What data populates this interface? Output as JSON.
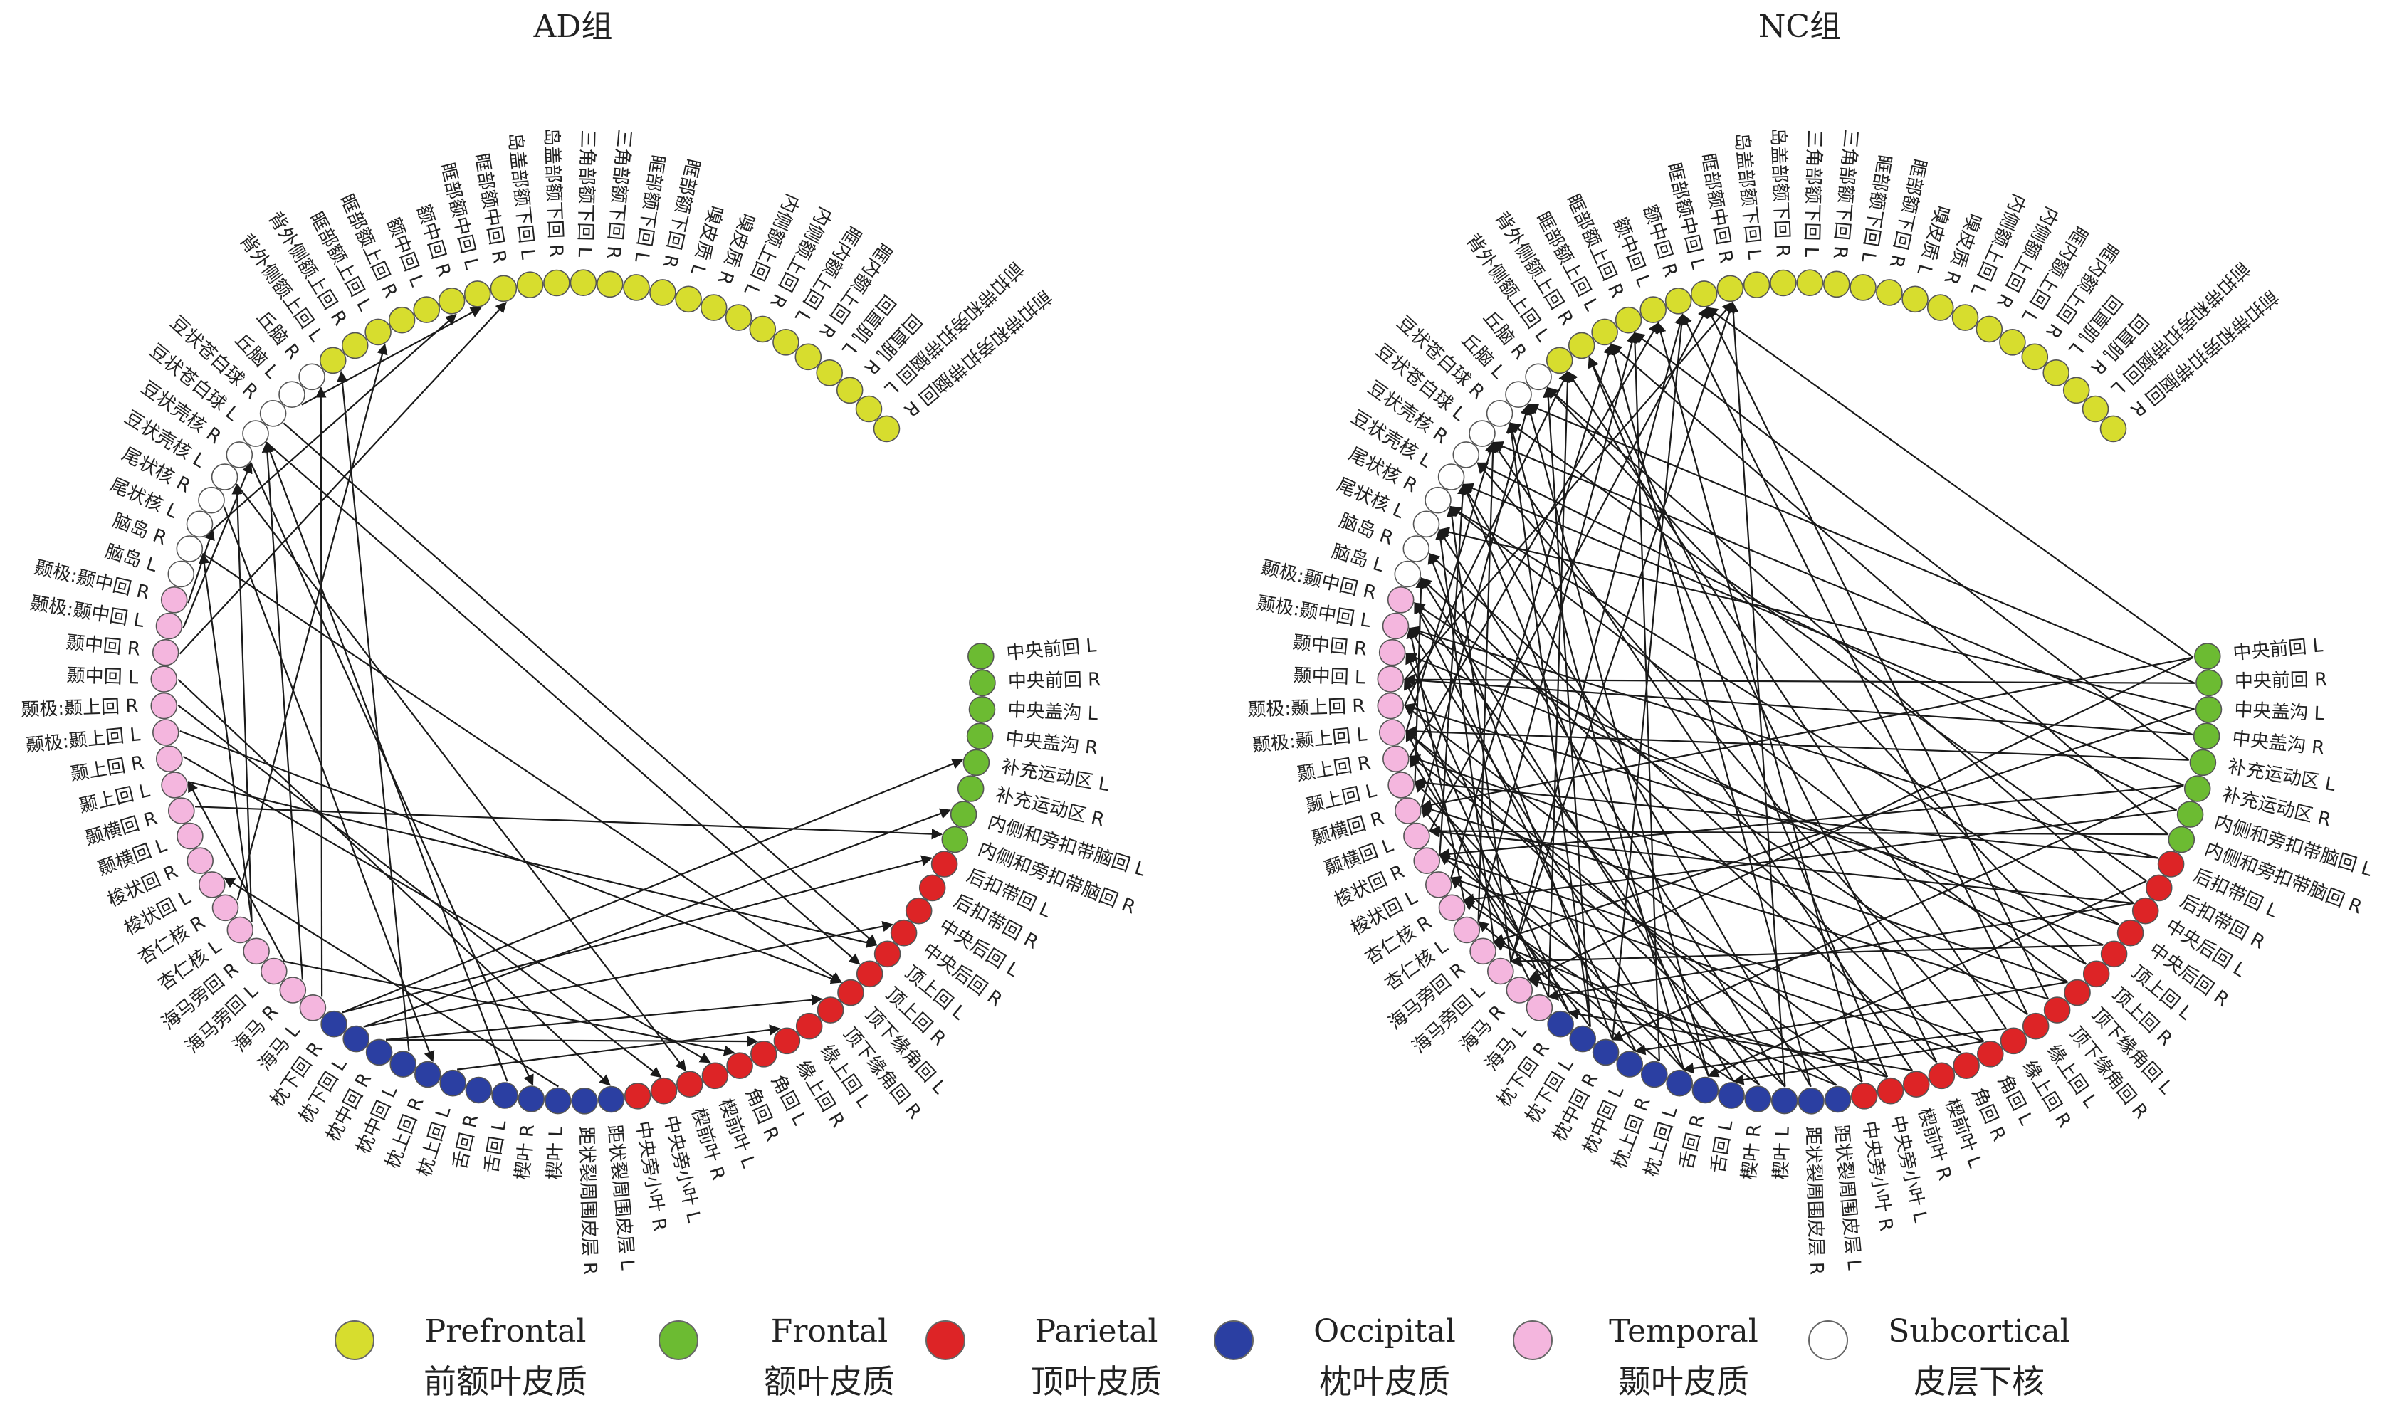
{
  "panels": [
    {
      "id": "ad",
      "title": "AD组",
      "edges": [
        [
          35,
          4
        ],
        [
          35,
          8
        ],
        [
          34,
          6
        ],
        [
          34,
          11
        ],
        [
          33,
          15
        ],
        [
          33,
          18
        ],
        [
          38,
          19
        ],
        [
          38,
          46
        ],
        [
          30,
          17
        ],
        [
          26,
          42
        ],
        [
          45,
          7
        ],
        [
          46,
          12
        ],
        [
          47,
          20
        ],
        [
          48,
          14
        ],
        [
          49,
          22
        ],
        [
          40,
          55
        ],
        [
          40,
          58
        ],
        [
          41,
          66
        ],
        [
          37,
          60
        ],
        [
          50,
          24
        ],
        [
          51,
          71
        ],
        [
          52,
          59
        ],
        [
          53,
          56
        ],
        [
          55,
          14
        ],
        [
          56,
          69
        ],
        [
          57,
          31
        ],
        [
          58,
          21
        ],
        [
          59,
          27
        ],
        [
          60,
          13
        ],
        [
          61,
          12
        ],
        [
          62,
          70
        ],
        [
          36,
          63
        ],
        [
          32,
          64
        ],
        [
          28,
          60
        ]
      ]
    },
    {
      "id": "nc",
      "title": "NC组",
      "edges": [
        [
          0,
          37
        ],
        [
          0,
          45
        ],
        [
          1,
          50
        ],
        [
          2,
          56
        ],
        [
          3,
          60
        ],
        [
          4,
          48
        ],
        [
          5,
          33
        ],
        [
          6,
          41
        ],
        [
          7,
          66
        ],
        [
          8,
          52
        ],
        [
          9,
          29
        ],
        [
          10,
          44
        ],
        [
          11,
          57
        ],
        [
          12,
          38
        ],
        [
          13,
          63
        ],
        [
          14,
          47
        ],
        [
          15,
          70
        ],
        [
          16,
          53
        ],
        [
          17,
          30
        ],
        [
          18,
          59
        ],
        [
          19,
          42
        ],
        [
          20,
          65
        ],
        [
          21,
          35
        ],
        [
          22,
          49
        ],
        [
          23,
          68
        ],
        [
          24,
          39
        ],
        [
          25,
          58
        ],
        [
          26,
          71
        ],
        [
          27,
          43
        ],
        [
          28,
          54
        ],
        [
          29,
          62
        ],
        [
          30,
          46
        ],
        [
          31,
          67
        ],
        [
          32,
          40
        ],
        [
          33,
          55
        ],
        [
          34,
          61
        ],
        [
          35,
          51
        ],
        [
          36,
          64
        ],
        [
          37,
          48
        ],
        [
          38,
          69
        ],
        [
          39,
          56
        ],
        [
          40,
          60
        ],
        [
          41,
          52
        ],
        [
          42,
          66
        ],
        [
          43,
          58
        ],
        [
          44,
          70
        ],
        [
          45,
          62
        ],
        [
          46,
          54
        ],
        [
          47,
          68
        ],
        [
          48,
          60
        ],
        [
          49,
          64
        ],
        [
          50,
          71
        ],
        [
          1,
          62
        ],
        [
          3,
          50
        ],
        [
          5,
          58
        ],
        [
          7,
          44
        ],
        [
          9,
          61
        ],
        [
          11,
          49
        ],
        [
          13,
          52
        ],
        [
          15,
          45
        ],
        [
          17,
          64
        ],
        [
          19,
          55
        ],
        [
          21,
          60
        ],
        [
          23,
          47
        ],
        [
          25,
          66
        ],
        [
          27,
          53
        ],
        [
          29,
          58
        ],
        [
          31,
          42
        ],
        [
          33,
          69
        ],
        [
          35,
          47
        ],
        [
          2,
          39
        ],
        [
          4,
          67
        ],
        [
          6,
          59
        ],
        [
          8,
          46
        ],
        [
          10,
          63
        ],
        [
          12,
          51
        ],
        [
          14,
          57
        ],
        [
          16,
          69
        ],
        [
          18,
          43
        ],
        [
          20,
          54
        ],
        [
          22,
          65
        ],
        [
          24,
          48
        ],
        [
          26,
          56
        ],
        [
          28,
          41
        ],
        [
          30,
          61
        ],
        [
          32,
          53
        ],
        [
          34,
          45
        ],
        [
          36,
          50
        ],
        [
          38,
          57
        ],
        [
          40,
          67
        ],
        [
          0,
          70
        ],
        [
          5,
          43
        ],
        [
          10,
          36
        ],
        [
          14,
          32
        ],
        [
          18,
          28
        ],
        [
          22,
          37
        ],
        [
          26,
          48
        ],
        [
          30,
          52
        ],
        [
          34,
          63
        ],
        [
          38,
          71
        ]
      ]
    }
  ],
  "nodes": [
    {
      "label": "中央前回 L",
      "group": "frontal"
    },
    {
      "label": "中央前回 R",
      "group": "frontal"
    },
    {
      "label": "中央盖沟 L",
      "group": "frontal"
    },
    {
      "label": "中央盖沟 R",
      "group": "frontal"
    },
    {
      "label": "补充运动区 L",
      "group": "frontal"
    },
    {
      "label": "补充运动区 R",
      "group": "frontal"
    },
    {
      "label": "内侧和旁扣带脑回 L",
      "group": "frontal"
    },
    {
      "label": "内侧和旁扣带脑回 R",
      "group": "frontal"
    },
    {
      "label": "后扣带回 L",
      "group": "parietal"
    },
    {
      "label": "后扣带回 R",
      "group": "parietal"
    },
    {
      "label": "中央后回 L",
      "group": "parietal"
    },
    {
      "label": "中央后回 R",
      "group": "parietal"
    },
    {
      "label": "顶上回 L",
      "group": "parietal"
    },
    {
      "label": "顶上回 R",
      "group": "parietal"
    },
    {
      "label": "顶下缘角回 L",
      "group": "parietal"
    },
    {
      "label": "顶下缘角回 R",
      "group": "parietal"
    },
    {
      "label": "缘上回 L",
      "group": "parietal"
    },
    {
      "label": "缘上回 R",
      "group": "parietal"
    },
    {
      "label": "角回 L",
      "group": "parietal"
    },
    {
      "label": "角回 R",
      "group": "parietal"
    },
    {
      "label": "楔前叶 L",
      "group": "parietal"
    },
    {
      "label": "楔前叶 R",
      "group": "parietal"
    },
    {
      "label": "中央旁小叶 L",
      "group": "parietal"
    },
    {
      "label": "中央旁小叶 R",
      "group": "parietal"
    },
    {
      "label": "距状裂周围皮层 L",
      "group": "occipital"
    },
    {
      "label": "距状裂周围皮层 R",
      "group": "occipital"
    },
    {
      "label": "楔叶 L",
      "group": "occipital"
    },
    {
      "label": "楔叶 R",
      "group": "occipital"
    },
    {
      "label": "舌回 L",
      "group": "occipital"
    },
    {
      "label": "舌回 R",
      "group": "occipital"
    },
    {
      "label": "枕上回 L",
      "group": "occipital"
    },
    {
      "label": "枕上回 R",
      "group": "occipital"
    },
    {
      "label": "枕中回 L",
      "group": "occipital"
    },
    {
      "label": "枕中回 R",
      "group": "occipital"
    },
    {
      "label": "枕下回 L",
      "group": "occipital"
    },
    {
      "label": "枕下回 R",
      "group": "occipital"
    },
    {
      "label": "海马 L",
      "group": "temporal"
    },
    {
      "label": "海马 R",
      "group": "temporal"
    },
    {
      "label": "海马旁回 L",
      "group": "temporal"
    },
    {
      "label": "海马旁回 R",
      "group": "temporal"
    },
    {
      "label": "杏仁核 L",
      "group": "temporal"
    },
    {
      "label": "杏仁核 R",
      "group": "temporal"
    },
    {
      "label": "梭状回 L",
      "group": "temporal"
    },
    {
      "label": "梭状回 R",
      "group": "temporal"
    },
    {
      "label": "颞横回 L",
      "group": "temporal"
    },
    {
      "label": "颞横回 R",
      "group": "temporal"
    },
    {
      "label": "颞上回 L",
      "group": "temporal"
    },
    {
      "label": "颞上回 R",
      "group": "temporal"
    },
    {
      "label": "颞极:颞上回 L",
      "group": "temporal"
    },
    {
      "label": "颞极:颞上回 R",
      "group": "temporal"
    },
    {
      "label": "颞中回 L",
      "group": "temporal"
    },
    {
      "label": "颞中回 R",
      "group": "temporal"
    },
    {
      "label": "颞极:颞中回 L",
      "group": "temporal"
    },
    {
      "label": "颞极:颞中回 R",
      "group": "temporal"
    },
    {
      "label": "脑岛 L",
      "group": "subcortical"
    },
    {
      "label": "脑岛 R",
      "group": "subcortical"
    },
    {
      "label": "尾状核 L",
      "group": "subcortical"
    },
    {
      "label": "尾状核 R",
      "group": "subcortical"
    },
    {
      "label": "豆状壳核 L",
      "group": "subcortical"
    },
    {
      "label": "豆状壳核 R",
      "group": "subcortical"
    },
    {
      "label": "豆状苍白球 L",
      "group": "subcortical"
    },
    {
      "label": "豆状苍白球 R",
      "group": "subcortical"
    },
    {
      "label": "丘脑 L",
      "group": "subcortical"
    },
    {
      "label": "丘脑 R",
      "group": "subcortical"
    },
    {
      "label": "背外侧额上回 L",
      "group": "prefrontal"
    },
    {
      "label": "背外侧额上回 R",
      "group": "prefrontal"
    },
    {
      "label": "眶部额上回 L",
      "group": "prefrontal"
    },
    {
      "label": "眶部额上回 R",
      "group": "prefrontal"
    },
    {
      "label": "额中回 L",
      "group": "prefrontal"
    },
    {
      "label": "额中回 R",
      "group": "prefrontal"
    },
    {
      "label": "眶部额中回 L",
      "group": "prefrontal"
    },
    {
      "label": "眶部额中回 R",
      "group": "prefrontal"
    },
    {
      "label": "岛盖部额下回 L",
      "group": "prefrontal"
    },
    {
      "label": "岛盖部额下回 R",
      "group": "prefrontal"
    },
    {
      "label": "三角部额下回 L",
      "group": "prefrontal"
    },
    {
      "label": "三角部额下回 R",
      "group": "prefrontal"
    },
    {
      "label": "眶部额下回 L",
      "group": "prefrontal"
    },
    {
      "label": "眶部额下回 R",
      "group": "prefrontal"
    },
    {
      "label": "嗅皮质 L",
      "group": "prefrontal"
    },
    {
      "label": "嗅皮质 R",
      "group": "prefrontal"
    },
    {
      "label": "内侧额上回 L",
      "group": "prefrontal"
    },
    {
      "label": "内侧额上回 R",
      "group": "prefrontal"
    },
    {
      "label": "眶内额上回 L",
      "group": "prefrontal"
    },
    {
      "label": "眶内额上回 R",
      "group": "prefrontal"
    },
    {
      "label": "回直肌 L",
      "group": "prefrontal"
    },
    {
      "label": "回直肌 R",
      "group": "prefrontal"
    },
    {
      "label": "前扣带和旁扣带脑回 L",
      "group": "prefrontal"
    },
    {
      "label": "前扣带和旁扣带脑回 R",
      "group": "prefrontal"
    }
  ],
  "groups": {
    "prefrontal": {
      "color": "#d7dd2e",
      "en": "Prefrontal",
      "zh": "前额叶皮质"
    },
    "frontal": {
      "color": "#6cbb32",
      "en": "Frontal",
      "zh": "额叶皮质"
    },
    "parietal": {
      "color": "#dd2426",
      "en": "Parietal",
      "zh": "顶叶皮质"
    },
    "occipital": {
      "color": "#2b3fa2",
      "en": "Occipital",
      "zh": "枕叶皮质"
    },
    "temporal": {
      "color": "#f4b6de",
      "en": "Temporal",
      "zh": "颞叶皮质"
    },
    "subcortical": {
      "color": "#ffffff",
      "en": "Subcortical",
      "zh": "皮层下核"
    }
  },
  "legend": [
    {
      "group": "prefrontal",
      "en": "Prefrontal",
      "zh": "前额叶皮质",
      "color": "#d7dd2e"
    },
    {
      "group": "frontal",
      "en": "Frontal",
      "zh": "额叶皮质",
      "color": "#6cbb32"
    },
    {
      "group": "parietal",
      "en": "Parietal",
      "zh": "顶叶皮质",
      "color": "#dd2426"
    },
    {
      "group": "occipital",
      "en": "Occipital",
      "zh": "枕叶皮质",
      "color": "#2b3fa2"
    },
    {
      "group": "temporal",
      "en": "Temporal",
      "zh": "颞叶皮质",
      "color": "#f4b6de"
    },
    {
      "group": "subcortical",
      "en": "Subcortical",
      "zh": "皮层下核",
      "color": "#ffffff"
    }
  ]
}
